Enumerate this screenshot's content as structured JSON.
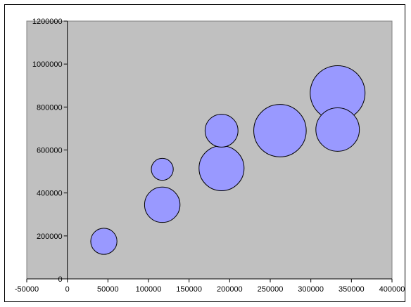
{
  "chart_data": {
    "type": "scatter",
    "subtype": "bubble",
    "title": "",
    "xlabel": "",
    "ylabel": "",
    "xlim": [
      -50000,
      400000
    ],
    "ylim": [
      0,
      1200000
    ],
    "x_ticks": [
      -50000,
      0,
      50000,
      100000,
      150000,
      200000,
      250000,
      300000,
      350000,
      400000
    ],
    "y_ticks": [
      0,
      200000,
      400000,
      600000,
      800000,
      1000000,
      1200000
    ],
    "x_tick_labels": [
      "-50000",
      "0",
      "50000",
      "100000",
      "150000",
      "200000",
      "250000",
      "300000",
      "350000",
      "400000"
    ],
    "y_tick_labels": [
      "0",
      "200000",
      "400000",
      "600000",
      "800000",
      "1000000",
      "1200000"
    ],
    "grid": false,
    "legend": "none",
    "plot_background": "#c0c0c0",
    "bubble_fill": "#9999ff",
    "bubble_stroke": "#000000",
    "series": [
      {
        "points": [
          {
            "x": 45000,
            "y": 175000,
            "size": 4.0
          },
          {
            "x": 117000,
            "y": 510000,
            "size": 2.8
          },
          {
            "x": 117000,
            "y": 345000,
            "size": 7.3
          },
          {
            "x": 190000,
            "y": 690000,
            "size": 6.3
          },
          {
            "x": 190000,
            "y": 515000,
            "size": 11.8
          },
          {
            "x": 262000,
            "y": 690000,
            "size": 16.0
          },
          {
            "x": 333000,
            "y": 695000,
            "size": 11.0
          },
          {
            "x": 333000,
            "y": 865000,
            "size": 17.5
          }
        ]
      }
    ]
  }
}
